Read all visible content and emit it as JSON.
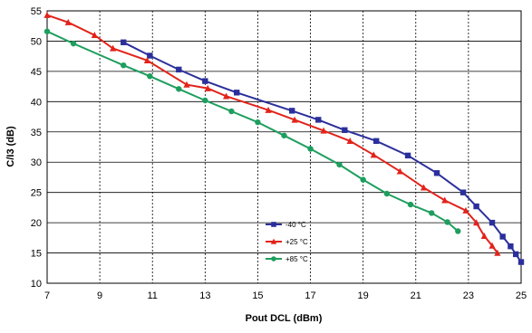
{
  "chart_data": {
    "type": "line",
    "title": "",
    "xlabel": "Pout DCL (dBm)",
    "ylabel": "C/I3 (dB)",
    "xlim": [
      7,
      25
    ],
    "ylim": [
      10,
      55
    ],
    "xticks": [
      7,
      9,
      11,
      13,
      15,
      17,
      19,
      21,
      23,
      25
    ],
    "yticks": [
      10,
      15,
      20,
      25,
      30,
      35,
      40,
      45,
      50,
      55
    ],
    "grid": {
      "vertical": "dashed",
      "horizontal": "solid"
    },
    "legend_position": "lower-center",
    "series": [
      {
        "name": "-40 °C",
        "color": "#2b2f9b",
        "marker": "square",
        "points": [
          [
            9.9,
            49.8
          ],
          [
            10.9,
            47.6
          ],
          [
            12,
            45.3
          ],
          [
            13,
            43.4
          ],
          [
            14.2,
            41.5
          ],
          [
            16.3,
            38.5
          ],
          [
            17.3,
            37.0
          ],
          [
            18.3,
            35.3
          ],
          [
            19.5,
            33.5
          ],
          [
            20.7,
            31.1
          ],
          [
            21.8,
            28.2
          ],
          [
            22.8,
            25.0
          ],
          [
            23.3,
            22.7
          ],
          [
            23.9,
            20.0
          ],
          [
            24.3,
            17.7
          ],
          [
            24.6,
            16.1
          ],
          [
            24.8,
            14.8
          ],
          [
            25,
            13.5
          ]
        ]
      },
      {
        "name": "+25 °C",
        "color": "#e2231a",
        "marker": "triangle",
        "points": [
          [
            7,
            54.3
          ],
          [
            7.8,
            53.1
          ],
          [
            8.8,
            51.0
          ],
          [
            9.5,
            48.8
          ],
          [
            10.8,
            46.8
          ],
          [
            12.3,
            42.8
          ],
          [
            13.1,
            42.2
          ],
          [
            13.8,
            40.9
          ],
          [
            15.4,
            38.6
          ],
          [
            16.4,
            37.0
          ],
          [
            17.5,
            35.2
          ],
          [
            18.5,
            33.5
          ],
          [
            19.4,
            31.2
          ],
          [
            20.4,
            28.5
          ],
          [
            21.3,
            25.8
          ],
          [
            22.1,
            23.7
          ],
          [
            22.9,
            22.0
          ],
          [
            23.3,
            20.0
          ],
          [
            23.6,
            17.8
          ],
          [
            23.9,
            16.2
          ],
          [
            24.1,
            15.0
          ]
        ]
      },
      {
        "name": "+85 °C",
        "color": "#1e9e5e",
        "marker": "circle",
        "points": [
          [
            7,
            51.6
          ],
          [
            8,
            49.6
          ],
          [
            9.9,
            46.0
          ],
          [
            10.9,
            44.2
          ],
          [
            12,
            42.1
          ],
          [
            13,
            40.2
          ],
          [
            14,
            38.4
          ],
          [
            15,
            36.6
          ],
          [
            16,
            34.4
          ],
          [
            17,
            32.2
          ],
          [
            18.1,
            29.6
          ],
          [
            19,
            27.1
          ],
          [
            19.9,
            24.8
          ],
          [
            20.8,
            23.0
          ],
          [
            21.6,
            21.6
          ],
          [
            22.2,
            20.1
          ],
          [
            22.6,
            18.6
          ]
        ]
      }
    ]
  }
}
